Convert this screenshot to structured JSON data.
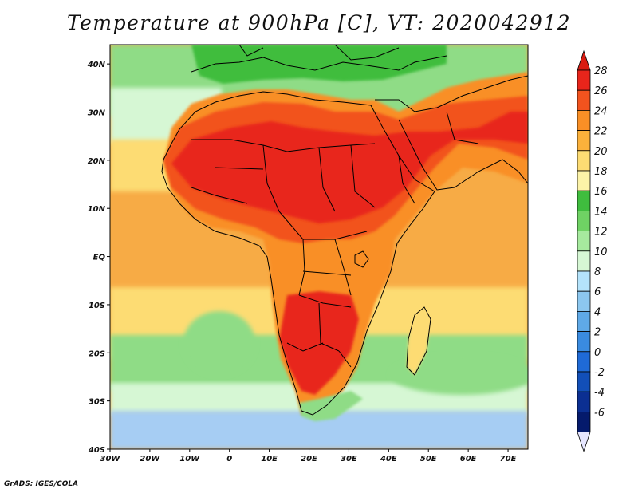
{
  "title": "Temperature at 900hPa [C], VT: 2020042912",
  "credit": "GrADS: IGES/COLA",
  "lon_ticks": [
    "30W",
    "20W",
    "10W",
    "0",
    "10E",
    "20E",
    "30E",
    "40E",
    "50E",
    "60E",
    "70E"
  ],
  "lat_ticks": [
    "40N",
    "30N",
    "20N",
    "10N",
    "EQ",
    "10S",
    "20S",
    "30S",
    "40S"
  ],
  "extent": {
    "lon": [
      -30,
      75
    ],
    "lat": [
      -40,
      44
    ]
  },
  "colorbar": {
    "labels": [
      "28",
      "26",
      "24",
      "22",
      "20",
      "18",
      "16",
      "14",
      "12",
      "10",
      "8",
      "6",
      "4",
      "2",
      "0",
      "-2",
      "-4",
      "-6"
    ],
    "colors": [
      "#e8251b",
      "#f2531e",
      "#f98f26",
      "#fbb13b",
      "#fddc73",
      "#fcf3a8",
      "#3fbd3e",
      "#6fd264",
      "#a6ea9e",
      "#d6f7d4",
      "#b4e3fb",
      "#8cc7ef",
      "#5fa9e7",
      "#3a8be0",
      "#1f6ad6",
      "#124fb8",
      "#0b2f92",
      "#051a6c"
    ],
    "top_arrow": "#d91c12",
    "bottom_arrow": "#e6e6ff"
  },
  "map_colors": {
    "ocean_cold": "#a6cdf3",
    "ocean_cool": "#d6f7d4",
    "ocean_mild": "#8fdc86",
    "ocean_warm": "#fddc73",
    "ocean_tropic": "#f7ab45",
    "land_hot": "#e8251b",
    "land_warm": "#f2531e",
    "land_mild": "#f98f26",
    "land_cool": "#3fbd3e",
    "border": "#000000"
  }
}
